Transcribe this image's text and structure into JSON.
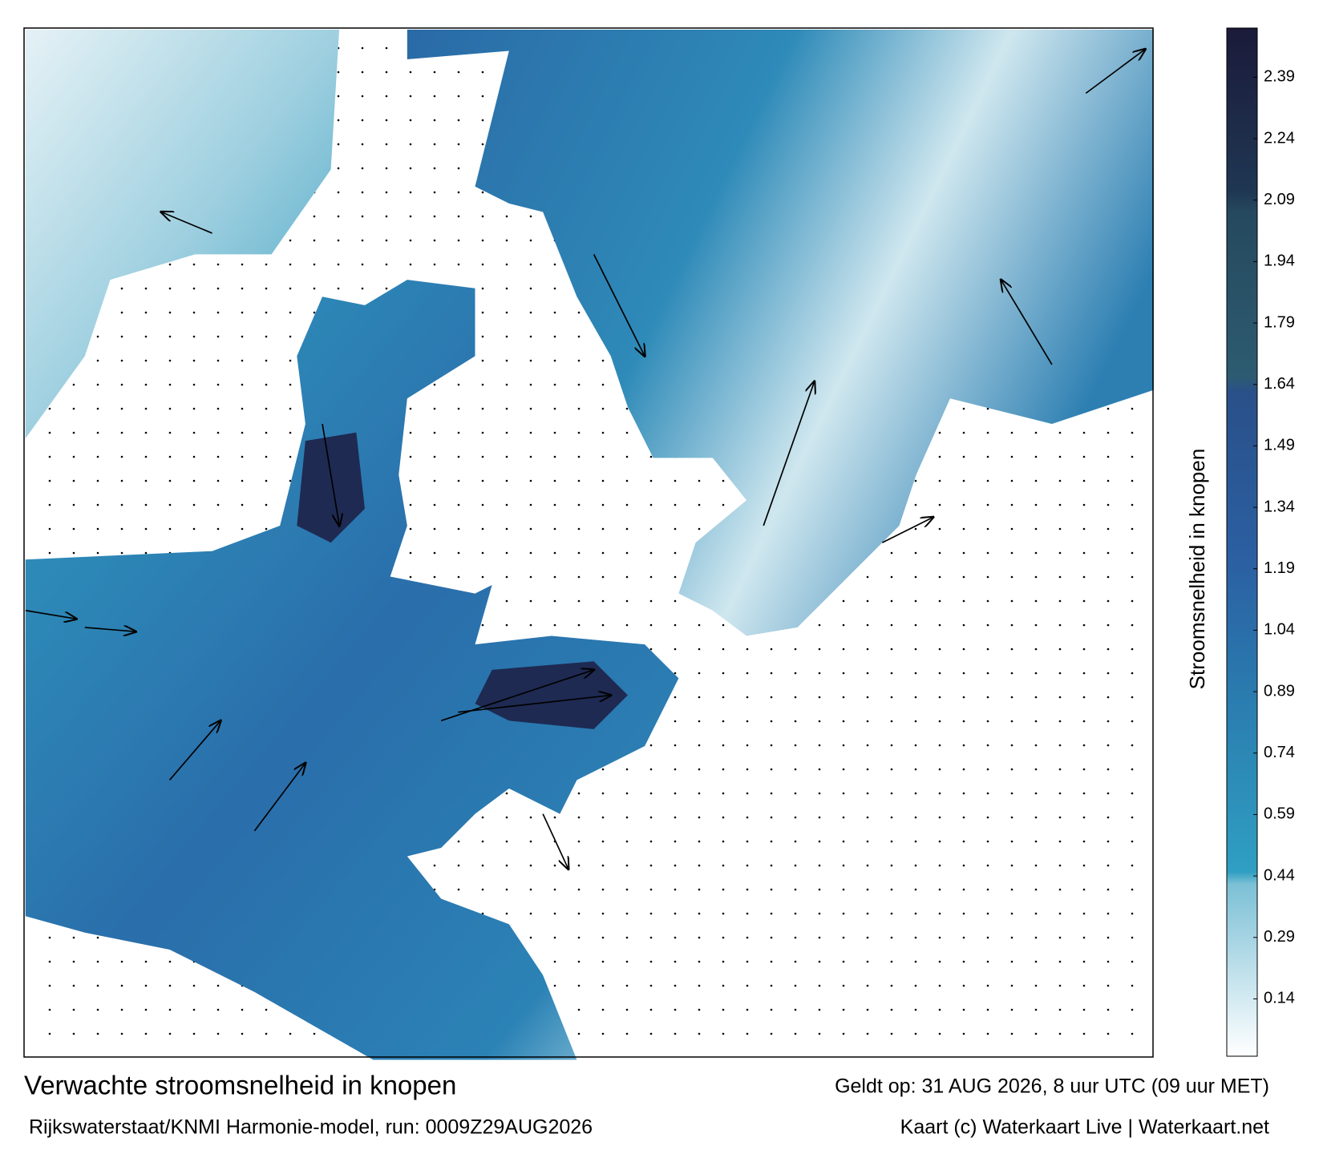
{
  "map": {
    "title": "Verwachte stroomsnelheid in knopen",
    "subtitle": "Rijkswaterstaat/KNMI Harmonie-model, run: 0009Z29AUG2026",
    "valid_time": "Geldt op: 31 AUG 2026, 8 uur UTC (09 uur MET)",
    "credit": "Kaart (c) Waterkaart Live | Waterkaart.net"
  },
  "colorbar": {
    "label": "Stroomsnelheid in knopen",
    "lim": [
      0,
      2.51
    ],
    "ticks": [
      0.14,
      0.29,
      0.44,
      0.59,
      0.74,
      0.89,
      1.04,
      1.19,
      1.34,
      1.49,
      1.64,
      1.79,
      1.94,
      2.09,
      2.24,
      2.39
    ],
    "color_stops": [
      {
        "value": 0,
        "color": "#ffffff"
      },
      {
        "value": 0.42,
        "color": "#7cc0d6"
      },
      {
        "value": 0.45,
        "color": "#2f9fc2"
      },
      {
        "value": 0.9,
        "color": "#2a7aae"
      },
      {
        "value": 1.2,
        "color": "#2b60a3"
      },
      {
        "value": 1.62,
        "color": "#2a5089"
      },
      {
        "value": 1.66,
        "color": "#2d5b70"
      },
      {
        "value": 2.06,
        "color": "#25495f"
      },
      {
        "value": 2.11,
        "color": "#1f3753"
      },
      {
        "value": 2.51,
        "color": "#1b1a3a"
      }
    ]
  }
}
